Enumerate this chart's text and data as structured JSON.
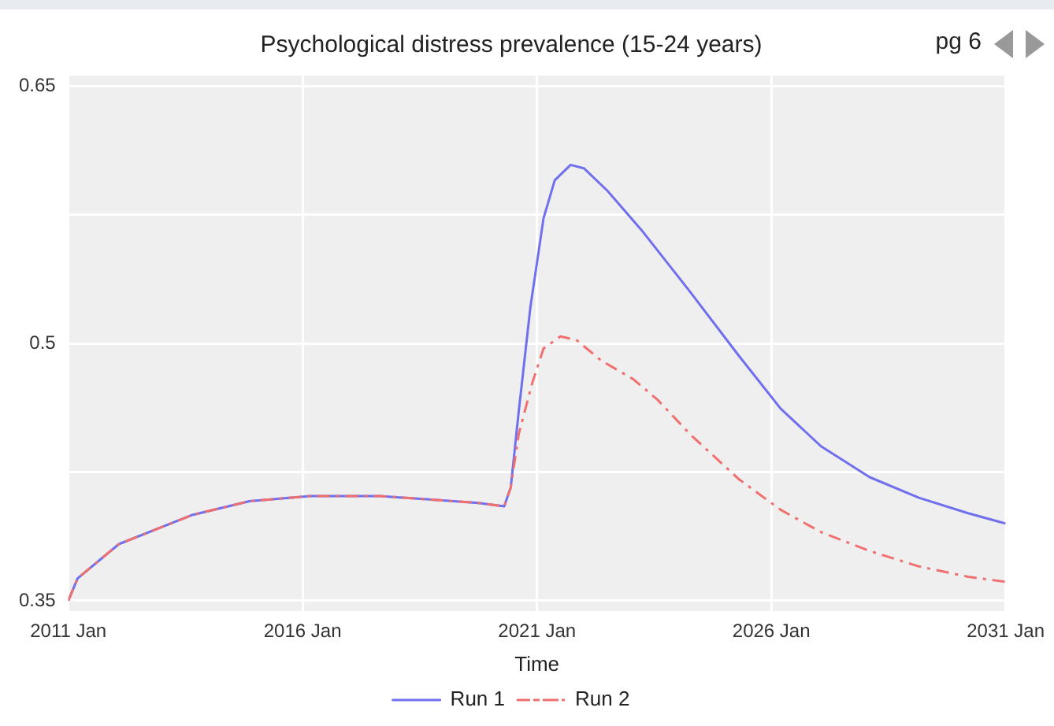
{
  "chart_data": {
    "type": "line",
    "title": "Psychological distress prevalence (15-24 years)",
    "xlabel": "Time",
    "annotations": [
      "pg 6"
    ],
    "xlim": [
      "2011-01",
      "2031-01"
    ],
    "xticks": [
      {
        "value": "2011-01",
        "label": "2011 Jan"
      },
      {
        "value": "2016-01",
        "label": "2016 Jan"
      },
      {
        "value": "2021-01",
        "label": "2021 Jan"
      },
      {
        "value": "2026-01",
        "label": "2026 Jan"
      },
      {
        "value": "2031-01",
        "label": "2031 Jan"
      }
    ],
    "ylim": [
      0.344,
      0.656
    ],
    "yticks": [
      0.35,
      {
        "value": 0.425,
        "label": null
      },
      0.5,
      {
        "value": 0.575,
        "label": null
      },
      0.65
    ],
    "grid": true,
    "legend": "bottom",
    "marker": "none",
    "series": [
      {
        "name": "Run 1",
        "color": "#7070ee",
        "line_style": "solid",
        "x": [
          "2011-01-01",
          "2011-03-14",
          "2012-01-30",
          "2013-08-25",
          "2014-11-13",
          "2016-02-28",
          "2017-08-29",
          "2018-09-13",
          "2019-10-01",
          "2020-04-20",
          "2020-06-10",
          "2020-08-11",
          "2020-11-10",
          "2021-02-21",
          "2021-05-19",
          "2021-09-20",
          "2022-01-01",
          "2022-07-02",
          "2023-03-26",
          "2024-04-08",
          "2025-04-20",
          "2026-03-14",
          "2027-01-23",
          "2028-02-06",
          "2029-02-24",
          "2030-03-14",
          "2031-01-01"
        ],
        "values": [
          0.35,
          0.363,
          0.383,
          0.4,
          0.408,
          0.411,
          0.411,
          0.409,
          0.407,
          0.405,
          0.416,
          0.46,
          0.521,
          0.573,
          0.595,
          0.604,
          0.602,
          0.589,
          0.566,
          0.53,
          0.493,
          0.462,
          0.44,
          0.422,
          0.41,
          0.401,
          0.395
        ]
      },
      {
        "name": "Run 2",
        "color": "#f07070",
        "line_style": "dashed",
        "x": [
          "2011-01-01",
          "2011-03-14",
          "2012-01-30",
          "2013-08-25",
          "2014-11-13",
          "2016-02-28",
          "2017-08-29",
          "2018-09-13",
          "2019-10-01",
          "2020-04-20",
          "2020-06-10",
          "2020-08-11",
          "2020-11-25",
          "2021-02-21",
          "2021-07-02",
          "2021-11-03",
          "2022-05-15",
          "2023-01-23",
          "2023-07-31",
          "2024-04-08",
          "2025-04-20",
          "2026-03-14",
          "2027-01-23",
          "2028-02-06",
          "2029-02-24",
          "2030-03-14",
          "2031-01-01"
        ],
        "values": [
          0.35,
          0.363,
          0.383,
          0.4,
          0.408,
          0.411,
          0.411,
          0.409,
          0.407,
          0.405,
          0.416,
          0.447,
          0.477,
          0.497,
          0.504,
          0.502,
          0.49,
          0.479,
          0.467,
          0.447,
          0.421,
          0.403,
          0.39,
          0.379,
          0.37,
          0.364,
          0.361
        ]
      }
    ]
  }
}
